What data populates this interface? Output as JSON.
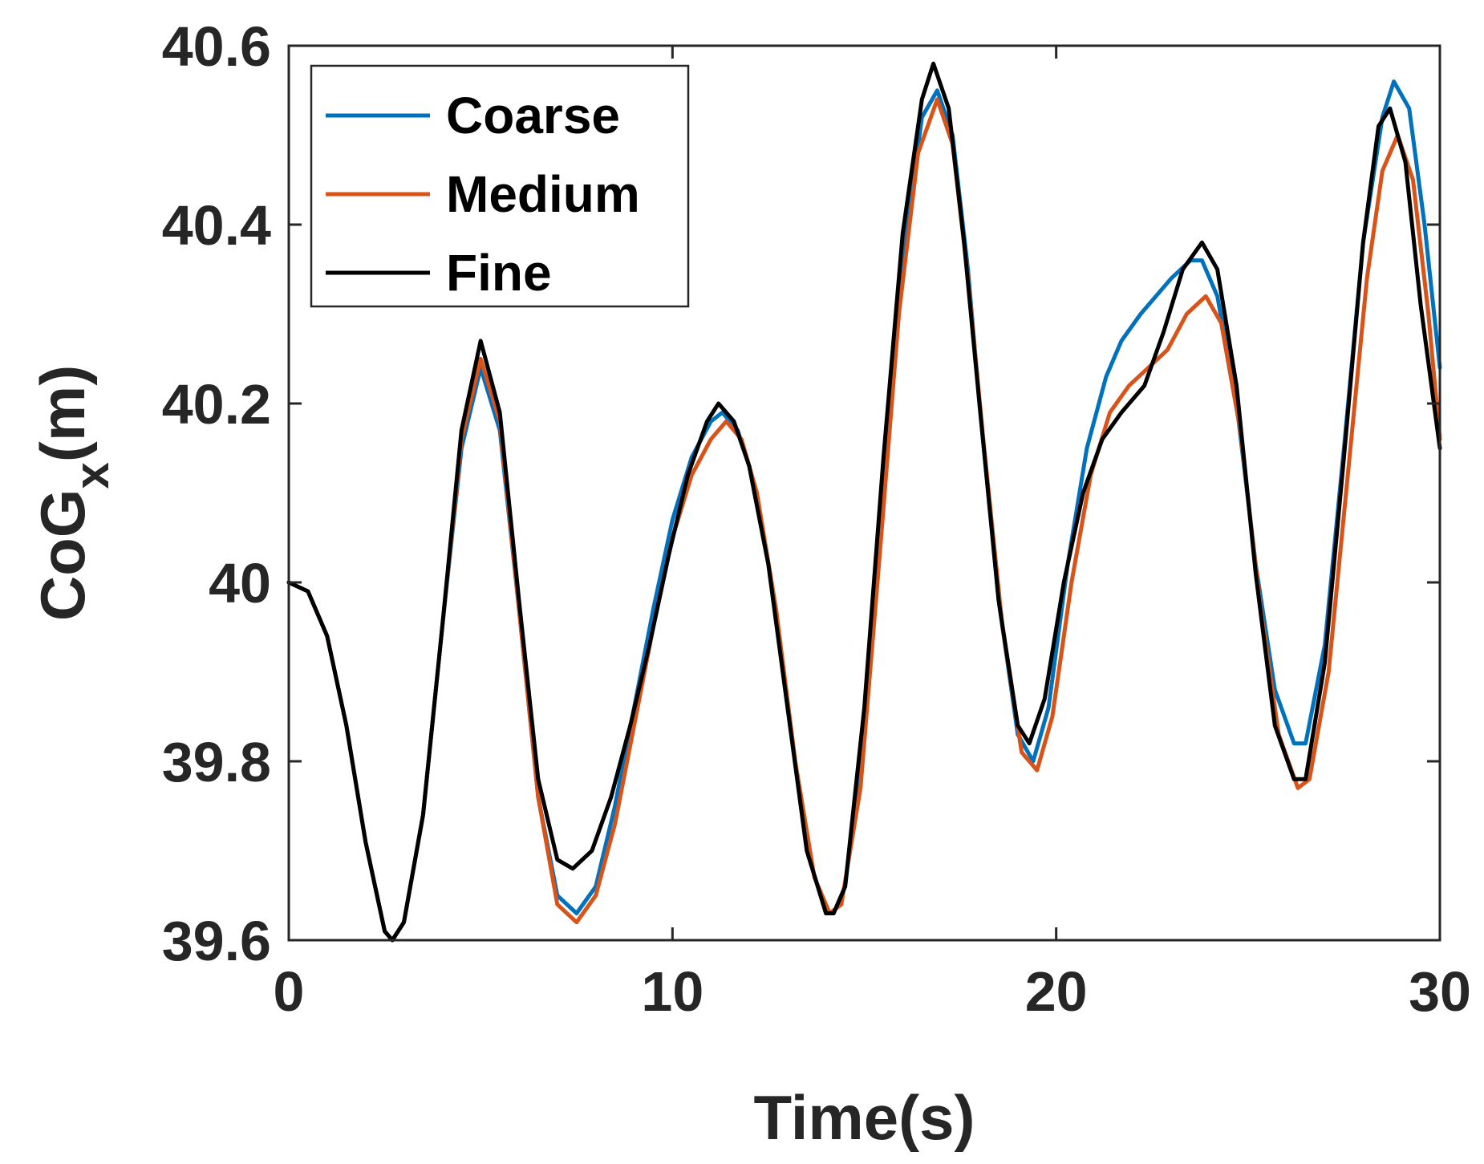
{
  "chart_data": {
    "type": "line",
    "xlabel": "Time(s)",
    "ylabel": {
      "main": "CoG",
      "subscript": "x",
      "unit": "(m)"
    },
    "xlim": [
      0,
      30
    ],
    "ylim": [
      39.6,
      40.6
    ],
    "x_ticks": [
      0,
      10,
      20,
      30
    ],
    "y_ticks": [
      39.6,
      39.8,
      40,
      40.2,
      40.4,
      40.6
    ],
    "x_tick_labels": [
      "0",
      "10",
      "20",
      "30"
    ],
    "y_tick_labels": [
      "39.6",
      "39.8",
      "40",
      "40.2",
      "40.4",
      "40.6"
    ],
    "grid": false,
    "box": true,
    "legend_position": "top-left",
    "series": [
      {
        "name": "Coarse",
        "color": "#0072BD",
        "points": [
          [
            0,
            40.0
          ],
          [
            0.5,
            39.99
          ],
          [
            1.0,
            39.94
          ],
          [
            1.5,
            39.84
          ],
          [
            2.0,
            39.71
          ],
          [
            2.5,
            39.61
          ],
          [
            2.7,
            39.6
          ],
          [
            3.0,
            39.62
          ],
          [
            3.5,
            39.74
          ],
          [
            4.0,
            39.95
          ],
          [
            4.5,
            40.15
          ],
          [
            5.0,
            40.24
          ],
          [
            5.5,
            40.17
          ],
          [
            6.0,
            39.97
          ],
          [
            6.5,
            39.76
          ],
          [
            7.0,
            39.65
          ],
          [
            7.5,
            39.63
          ],
          [
            8.0,
            39.66
          ],
          [
            8.5,
            39.75
          ],
          [
            9.0,
            39.86
          ],
          [
            9.5,
            39.97
          ],
          [
            10.0,
            40.07
          ],
          [
            10.5,
            40.14
          ],
          [
            11.0,
            40.18
          ],
          [
            11.3,
            40.19
          ],
          [
            11.7,
            40.17
          ],
          [
            12.0,
            40.13
          ],
          [
            12.5,
            40.02
          ],
          [
            13.0,
            39.86
          ],
          [
            13.5,
            39.7
          ],
          [
            14.0,
            39.63
          ],
          [
            14.2,
            39.63
          ],
          [
            14.5,
            39.66
          ],
          [
            15.0,
            39.84
          ],
          [
            15.5,
            40.11
          ],
          [
            16.0,
            40.36
          ],
          [
            16.5,
            40.52
          ],
          [
            16.9,
            40.55
          ],
          [
            17.3,
            40.5
          ],
          [
            17.7,
            40.35
          ],
          [
            18.0,
            40.2
          ],
          [
            18.5,
            39.98
          ],
          [
            19.0,
            39.83
          ],
          [
            19.4,
            39.8
          ],
          [
            19.8,
            39.86
          ],
          [
            20.3,
            40.02
          ],
          [
            20.8,
            40.15
          ],
          [
            21.3,
            40.23
          ],
          [
            21.7,
            40.27
          ],
          [
            22.2,
            40.3
          ],
          [
            22.6,
            40.32
          ],
          [
            23.0,
            40.34
          ],
          [
            23.5,
            40.36
          ],
          [
            23.8,
            40.36
          ],
          [
            24.2,
            40.32
          ],
          [
            24.7,
            40.2
          ],
          [
            25.2,
            40.02
          ],
          [
            25.7,
            39.88
          ],
          [
            26.2,
            39.82
          ],
          [
            26.5,
            39.82
          ],
          [
            27.0,
            39.93
          ],
          [
            27.5,
            40.15
          ],
          [
            28.0,
            40.38
          ],
          [
            28.5,
            40.52
          ],
          [
            28.8,
            40.56
          ],
          [
            29.2,
            40.53
          ],
          [
            29.6,
            40.4
          ],
          [
            30.0,
            40.24
          ]
        ]
      },
      {
        "name": "Medium",
        "color": "#D95319",
        "points": [
          [
            0,
            40.0
          ],
          [
            0.5,
            39.99
          ],
          [
            1.0,
            39.94
          ],
          [
            1.5,
            39.84
          ],
          [
            2.0,
            39.71
          ],
          [
            2.5,
            39.61
          ],
          [
            2.7,
            39.6
          ],
          [
            3.0,
            39.62
          ],
          [
            3.5,
            39.74
          ],
          [
            4.0,
            39.95
          ],
          [
            4.5,
            40.16
          ],
          [
            5.0,
            40.25
          ],
          [
            5.5,
            40.18
          ],
          [
            6.0,
            39.97
          ],
          [
            6.5,
            39.76
          ],
          [
            7.0,
            39.64
          ],
          [
            7.5,
            39.62
          ],
          [
            8.0,
            39.65
          ],
          [
            8.5,
            39.73
          ],
          [
            9.0,
            39.84
          ],
          [
            9.5,
            39.95
          ],
          [
            10.0,
            40.05
          ],
          [
            10.5,
            40.12
          ],
          [
            11.0,
            40.16
          ],
          [
            11.4,
            40.18
          ],
          [
            11.8,
            40.16
          ],
          [
            12.2,
            40.1
          ],
          [
            12.7,
            39.97
          ],
          [
            13.2,
            39.8
          ],
          [
            13.7,
            39.67
          ],
          [
            14.1,
            39.63
          ],
          [
            14.4,
            39.64
          ],
          [
            14.9,
            39.77
          ],
          [
            15.4,
            40.03
          ],
          [
            15.9,
            40.3
          ],
          [
            16.4,
            40.48
          ],
          [
            16.9,
            40.54
          ],
          [
            17.3,
            40.49
          ],
          [
            17.7,
            40.34
          ],
          [
            18.1,
            40.16
          ],
          [
            18.6,
            39.95
          ],
          [
            19.1,
            39.81
          ],
          [
            19.5,
            39.79
          ],
          [
            19.9,
            39.85
          ],
          [
            20.4,
            40.0
          ],
          [
            20.9,
            40.12
          ],
          [
            21.4,
            40.19
          ],
          [
            21.9,
            40.22
          ],
          [
            22.4,
            40.24
          ],
          [
            22.9,
            40.26
          ],
          [
            23.4,
            40.3
          ],
          [
            23.9,
            40.32
          ],
          [
            24.3,
            40.29
          ],
          [
            24.8,
            40.17
          ],
          [
            25.3,
            39.98
          ],
          [
            25.8,
            39.83
          ],
          [
            26.3,
            39.77
          ],
          [
            26.6,
            39.78
          ],
          [
            27.1,
            39.9
          ],
          [
            27.6,
            40.12
          ],
          [
            28.1,
            40.34
          ],
          [
            28.5,
            40.46
          ],
          [
            28.9,
            40.5
          ],
          [
            29.3,
            40.45
          ],
          [
            29.7,
            40.3
          ],
          [
            30.0,
            40.16
          ]
        ]
      },
      {
        "name": "Fine",
        "color": "#000000",
        "points": [
          [
            0,
            40.0
          ],
          [
            0.5,
            39.99
          ],
          [
            1.0,
            39.94
          ],
          [
            1.5,
            39.84
          ],
          [
            2.0,
            39.71
          ],
          [
            2.5,
            39.61
          ],
          [
            2.7,
            39.6
          ],
          [
            3.0,
            39.62
          ],
          [
            3.5,
            39.74
          ],
          [
            4.0,
            39.95
          ],
          [
            4.5,
            40.17
          ],
          [
            5.0,
            40.27
          ],
          [
            5.5,
            40.19
          ],
          [
            6.0,
            39.98
          ],
          [
            6.5,
            39.78
          ],
          [
            7.0,
            39.69
          ],
          [
            7.4,
            39.68
          ],
          [
            7.9,
            39.7
          ],
          [
            8.4,
            39.76
          ],
          [
            8.9,
            39.84
          ],
          [
            9.4,
            39.93
          ],
          [
            9.9,
            40.03
          ],
          [
            10.4,
            40.12
          ],
          [
            10.9,
            40.18
          ],
          [
            11.2,
            40.2
          ],
          [
            11.6,
            40.18
          ],
          [
            12.0,
            40.13
          ],
          [
            12.5,
            40.02
          ],
          [
            13.0,
            39.86
          ],
          [
            13.5,
            39.7
          ],
          [
            14.0,
            39.63
          ],
          [
            14.2,
            39.63
          ],
          [
            14.5,
            39.66
          ],
          [
            15.0,
            39.86
          ],
          [
            15.5,
            40.14
          ],
          [
            16.0,
            40.39
          ],
          [
            16.5,
            40.54
          ],
          [
            16.8,
            40.58
          ],
          [
            17.2,
            40.53
          ],
          [
            17.6,
            40.38
          ],
          [
            18.0,
            40.2
          ],
          [
            18.5,
            39.98
          ],
          [
            19.0,
            39.84
          ],
          [
            19.3,
            39.82
          ],
          [
            19.7,
            39.87
          ],
          [
            20.2,
            40.0
          ],
          [
            20.7,
            40.1
          ],
          [
            21.2,
            40.16
          ],
          [
            21.7,
            40.19
          ],
          [
            22.3,
            40.22
          ],
          [
            22.8,
            40.28
          ],
          [
            23.3,
            40.35
          ],
          [
            23.8,
            40.38
          ],
          [
            24.2,
            40.35
          ],
          [
            24.7,
            40.22
          ],
          [
            25.2,
            40.01
          ],
          [
            25.7,
            39.84
          ],
          [
            26.2,
            39.78
          ],
          [
            26.5,
            39.78
          ],
          [
            27.0,
            39.91
          ],
          [
            27.5,
            40.14
          ],
          [
            28.0,
            40.38
          ],
          [
            28.4,
            40.51
          ],
          [
            28.7,
            40.53
          ],
          [
            29.1,
            40.47
          ],
          [
            29.5,
            40.31
          ],
          [
            30.0,
            40.15
          ]
        ]
      }
    ]
  }
}
